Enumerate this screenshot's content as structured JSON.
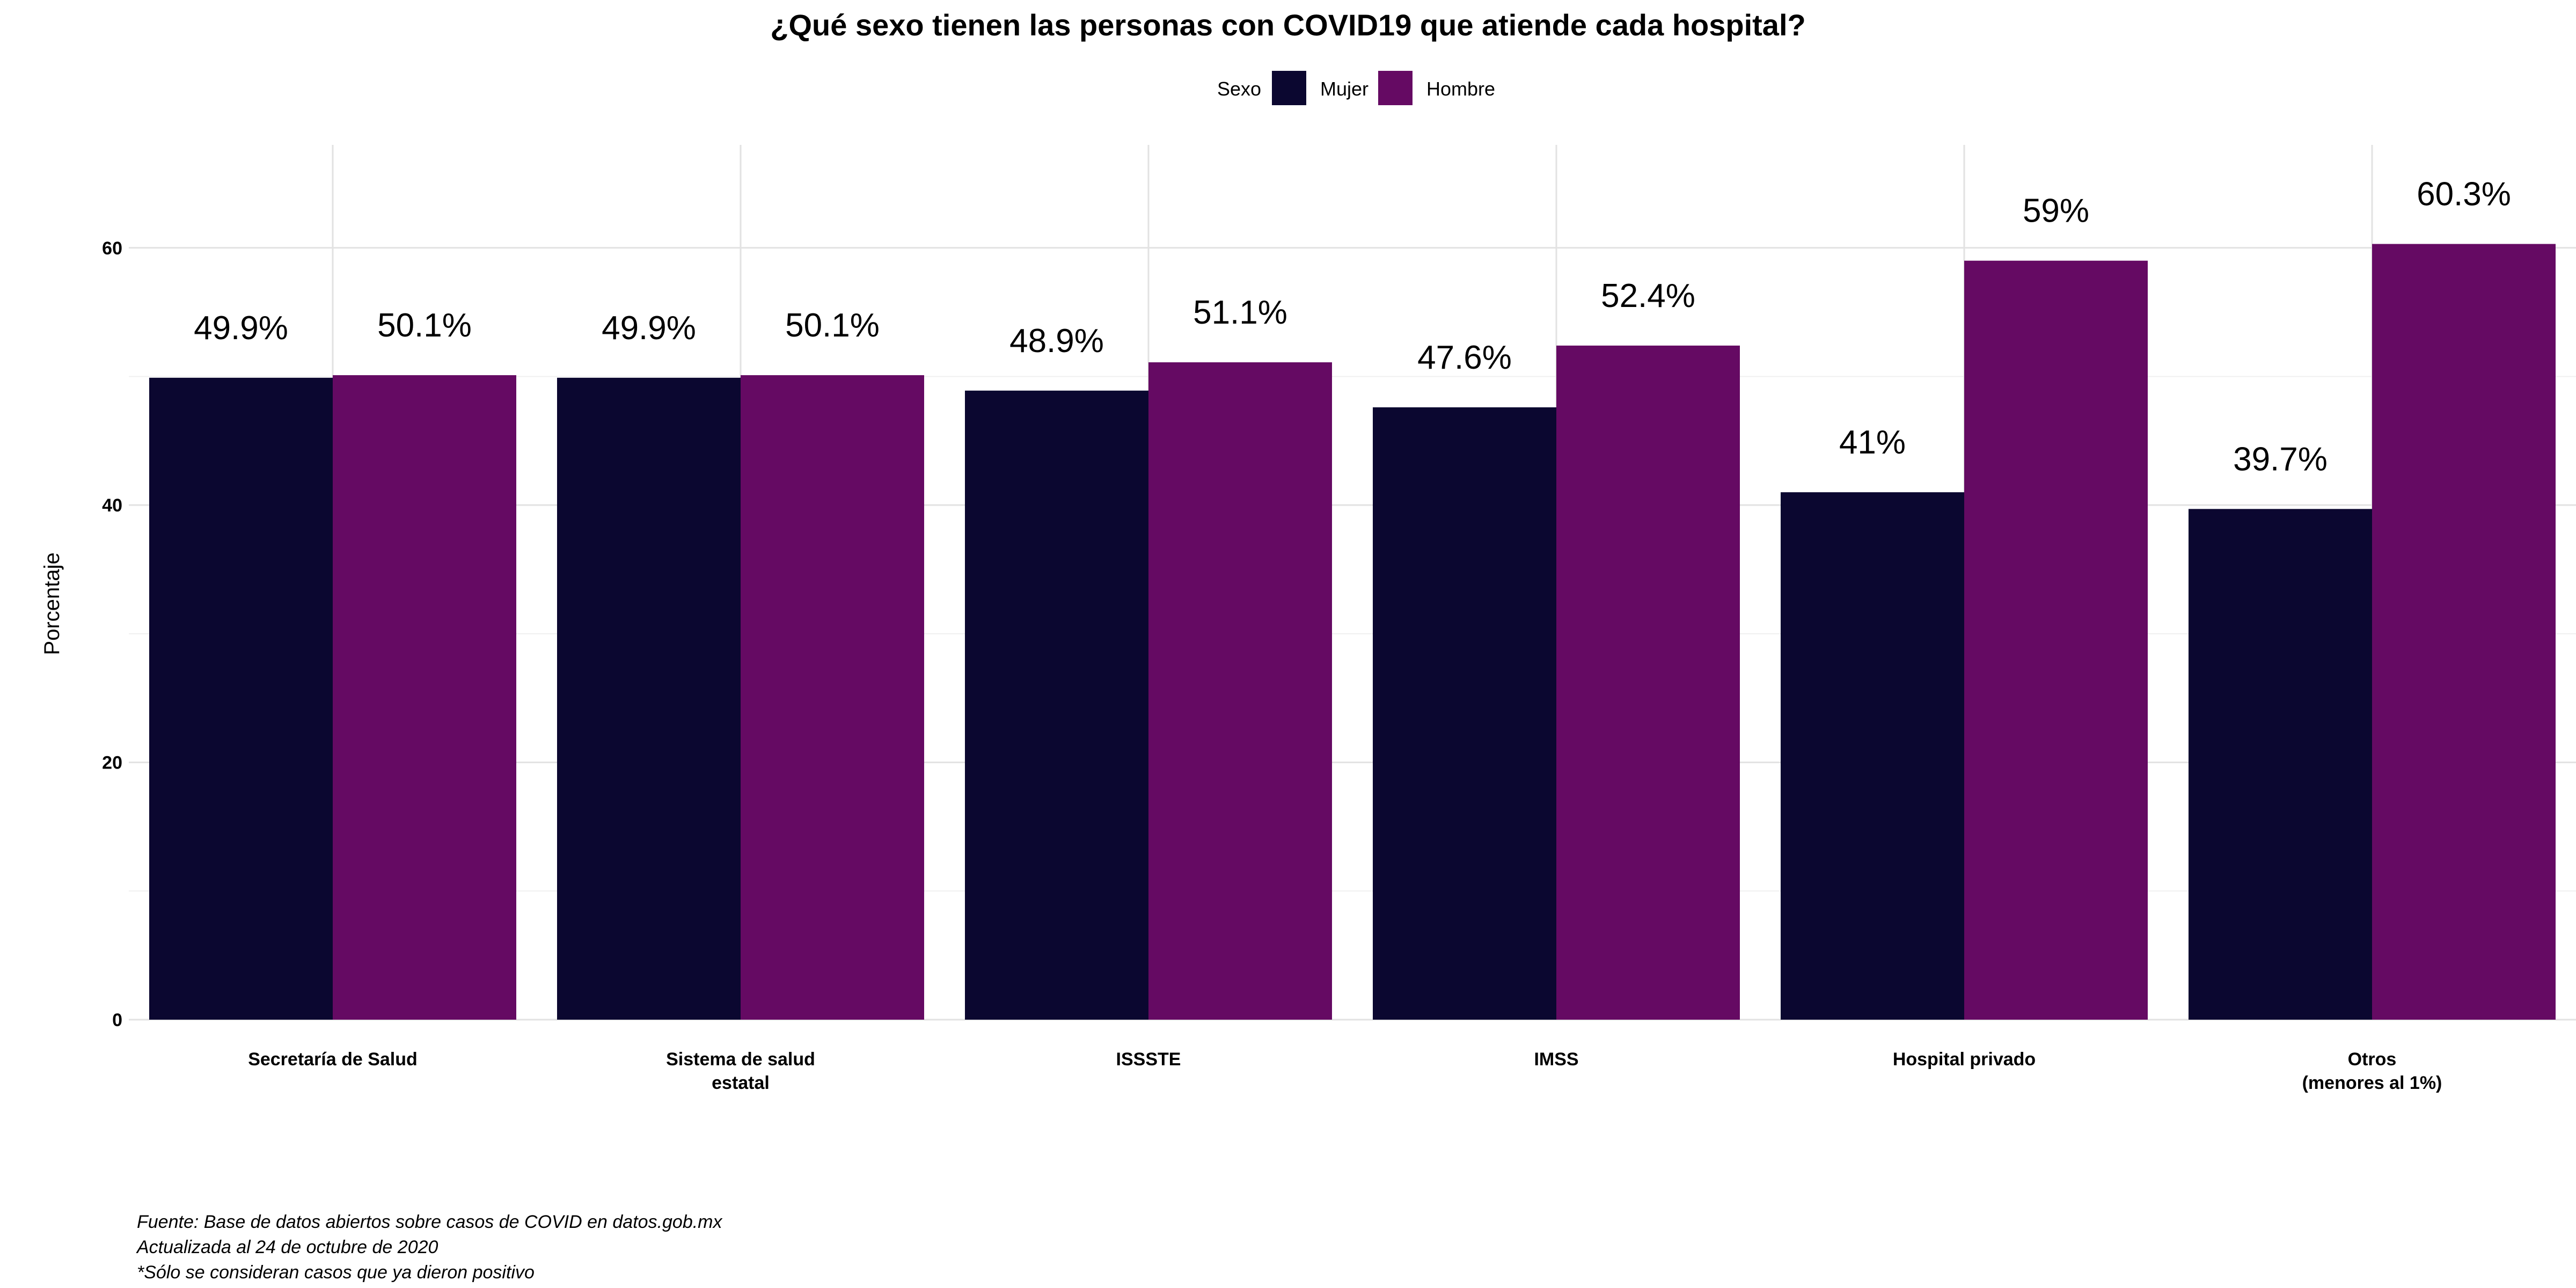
{
  "chart_data": {
    "type": "bar",
    "title": "¿Qué sexo tienen las personas con COVID19 que atiende cada hospital?",
    "xlabel": "",
    "ylabel": "Porcentaje",
    "ylim": [
      0,
      68
    ],
    "yticks": [
      0,
      20,
      40,
      60
    ],
    "grid": true,
    "legend": {
      "title": "Sexo",
      "position": "top"
    },
    "categories": [
      [
        "Secretaría de Salud"
      ],
      [
        "Sistema de salud",
        "estatal"
      ],
      [
        "ISSSTE"
      ],
      [
        "IMSS"
      ],
      [
        "Hospital privado"
      ],
      [
        "Otros",
        "(menores al 1%)"
      ]
    ],
    "series": [
      {
        "name": "Mujer",
        "color": "#0b0730",
        "values": [
          49.9,
          49.9,
          48.9,
          47.6,
          41,
          39.7
        ],
        "labels": [
          "49.9%",
          "49.9%",
          "48.9%",
          "47.6%",
          "41%",
          "39.7%"
        ]
      },
      {
        "name": "Hombre",
        "color": "#650a63",
        "values": [
          50.1,
          50.1,
          51.1,
          52.4,
          59,
          60.3
        ],
        "labels": [
          "50.1%",
          "50.1%",
          "51.1%",
          "52.4%",
          "59%",
          "60.3%"
        ]
      }
    ],
    "caption": [
      "Fuente: Base de datos abiertos sobre casos de COVID en datos.gob.mx",
      "Actualizada al 24 de octubre de 2020",
      "*Sólo se consideran casos que ya dieron positivo"
    ]
  }
}
